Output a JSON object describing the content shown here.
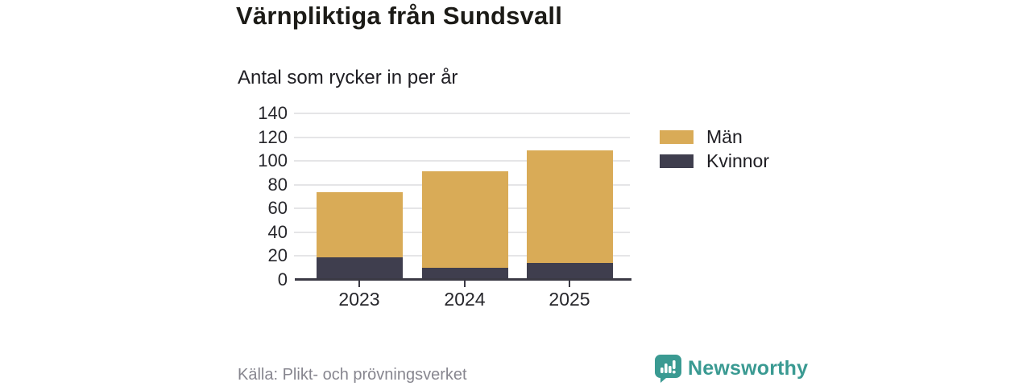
{
  "title": "Värnpliktiga från Sundsvall",
  "subtitle": "Antal som rycker in per år",
  "source": "Källa: Plikt- och prövningsverket",
  "brand": {
    "name": "Newsworthy",
    "color": "#3a9a92",
    "icon": "bar-chart-speech-bubble-icon"
  },
  "colors": {
    "axis": "#3a3944",
    "grid": "#e5e5e7",
    "text": "#26262b",
    "title": "#1c1b17",
    "source_text": "#87868f"
  },
  "chart_data": {
    "type": "bar",
    "stacked": true,
    "title": "Värnpliktiga från Sundsvall",
    "subtitle": "Antal som rycker in per år",
    "categories": [
      "2023",
      "2024",
      "2025"
    ],
    "series": [
      {
        "name": "Män",
        "color": "#d9ab57",
        "values": [
          55,
          81,
          95
        ]
      },
      {
        "name": "Kvinnor",
        "color": "#3f3e4e",
        "values": [
          19,
          10,
          14
        ]
      }
    ],
    "totals": [
      74,
      91,
      109
    ],
    "yticks": [
      0,
      20,
      40,
      60,
      80,
      100,
      120,
      140
    ],
    "ylim": [
      0,
      140
    ],
    "xlabel": "",
    "ylabel": "",
    "grid": true,
    "legend_position": "right"
  }
}
